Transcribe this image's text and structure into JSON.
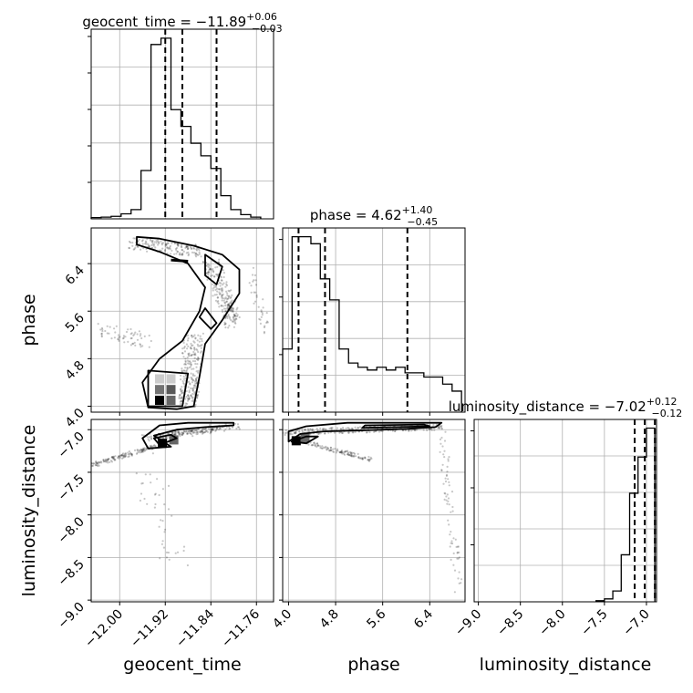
{
  "chart_data": [
    {
      "type": "bar",
      "panel": "geocent_time marginal",
      "title": {
        "main": "geocent_time = −11.89",
        "sup": "+0.06",
        "sub": "−0.03"
      },
      "xlim": [
        -12.05,
        -11.73
      ],
      "x_ticks": [
        "−12.00",
        "−11.92",
        "−11.84",
        "−11.76"
      ],
      "x_tick_values": [
        -12.0,
        -11.92,
        -11.84,
        -11.76
      ],
      "xlabel": "geocent_time",
      "grid": true,
      "bin_edges": [
        -12.05,
        -12.0325,
        -12.015,
        -11.9975,
        -11.98,
        -11.9625,
        -11.945,
        -11.9275,
        -11.91,
        -11.8925,
        -11.875,
        -11.8575,
        -11.84,
        -11.8225,
        -11.805,
        -11.7875,
        -11.77,
        -11.7525
      ],
      "counts": [
        0.3,
        0.4,
        0.6,
        1.2,
        2.2,
        11.5,
        41.5,
        43.0,
        26.0,
        22.0,
        18.0,
        15.0,
        12.0,
        5.5,
        2.2,
        1.0,
        0.4
      ],
      "quantiles": [
        -11.92,
        -11.89,
        -11.83
      ]
    },
    {
      "type": "bar",
      "panel": "phase marginal",
      "title": {
        "main": "phase = 4.62",
        "sup": "+1.40",
        "sub": "−0.45"
      },
      "xlim": [
        3.9,
        7.0
      ],
      "x_ticks": [
        "4.0",
        "4.8",
        "5.6",
        "6.4"
      ],
      "x_tick_values": [
        4.0,
        4.8,
        5.6,
        6.4
      ],
      "xlabel": "phase",
      "grid": true,
      "bin_edges": [
        3.9,
        4.06,
        4.22,
        4.38,
        4.54,
        4.7,
        4.86,
        5.02,
        5.18,
        5.34,
        5.5,
        5.66,
        5.82,
        5.98,
        6.14,
        6.3,
        6.46,
        6.62,
        6.78,
        6.94
      ],
      "counts": [
        4.5,
        12.5,
        12.5,
        12.0,
        9.5,
        8.0,
        4.5,
        3.5,
        3.2,
        3.0,
        3.2,
        3.0,
        3.2,
        2.8,
        2.8,
        2.5,
        2.5,
        2.0,
        1.5
      ],
      "quantiles": [
        4.17,
        4.62,
        6.02
      ]
    },
    {
      "type": "bar",
      "panel": "luminosity_distance marginal",
      "title": {
        "main": "luminosity_distance = −7.02",
        "sup": "+0.12",
        "sub": "−0.12"
      },
      "xlim": [
        -9.05,
        -6.88
      ],
      "x_ticks": [
        "−9.0",
        "−8.5",
        "−8.0",
        "−7.5",
        "−7.0"
      ],
      "x_tick_values": [
        -9.0,
        -8.5,
        -8.0,
        -7.5,
        -7.0
      ],
      "xlabel": "luminosity_distance",
      "grid": true,
      "bin_edges": [
        -7.6,
        -7.5,
        -7.4,
        -7.3,
        -7.2,
        -7.1,
        -7.0,
        -6.9
      ],
      "counts": [
        0.3,
        0.8,
        3.0,
        13.0,
        30.0,
        40.0,
        48.0
      ],
      "quantiles": [
        -7.14,
        -7.02,
        -6.9
      ]
    },
    {
      "type": "scatter",
      "panel": "geocent_time vs phase",
      "xlim": [
        -12.05,
        -11.73
      ],
      "ylim": [
        3.9,
        7.0
      ],
      "y_ticks": [
        "4.0",
        "4.8",
        "5.6",
        "6.4"
      ],
      "y_tick_values": [
        4.0,
        4.8,
        5.6,
        6.4
      ],
      "ylabel": "phase",
      "grid": true,
      "outer_contour": [
        [
          -11.97,
          6.85
        ],
        [
          -11.93,
          6.82
        ],
        [
          -11.87,
          6.7
        ],
        [
          -11.82,
          6.55
        ],
        [
          -11.79,
          6.3
        ],
        [
          -11.79,
          5.9
        ],
        [
          -11.82,
          5.45
        ],
        [
          -11.85,
          5.05
        ],
        [
          -11.86,
          4.5
        ],
        [
          -11.87,
          4.0
        ],
        [
          -11.9,
          3.95
        ],
        [
          -11.95,
          3.98
        ],
        [
          -11.96,
          4.4
        ],
        [
          -11.93,
          4.8
        ],
        [
          -11.89,
          5.1
        ],
        [
          -11.86,
          5.6
        ],
        [
          -11.85,
          6.0
        ],
        [
          -11.88,
          6.4
        ],
        [
          -11.93,
          6.6
        ],
        [
          -11.97,
          6.72
        ]
      ],
      "inner_contour": [
        [
          -11.85,
          6.55
        ],
        [
          -11.82,
          6.35
        ],
        [
          -11.83,
          6.05
        ],
        [
          -11.85,
          6.2
        ]
      ],
      "inner_contour_2": [
        [
          -11.85,
          5.65
        ],
        [
          -11.83,
          5.4
        ],
        [
          -11.84,
          5.3
        ],
        [
          -11.86,
          5.5
        ]
      ],
      "inner_contour_3": [
        [
          -11.95,
          4.6
        ],
        [
          -11.88,
          4.55
        ],
        [
          -11.89,
          4.0
        ],
        [
          -11.95,
          4.0
        ]
      ],
      "dash_mark": [
        [
          -11.91,
          6.46
        ],
        [
          -11.88,
          6.44
        ]
      ],
      "density_cells": [
        {
          "x": -11.93,
          "y": 4.28,
          "level": 0.55
        },
        {
          "x": -11.91,
          "y": 4.28,
          "level": 0.65
        },
        {
          "x": -11.93,
          "y": 4.1,
          "level": 1.0
        },
        {
          "x": -11.91,
          "y": 4.1,
          "level": 0.6
        },
        {
          "x": -11.93,
          "y": 4.46,
          "level": 0.2
        },
        {
          "x": -11.91,
          "y": 4.46,
          "level": 0.2
        }
      ]
    },
    {
      "type": "scatter",
      "panel": "geocent_time vs luminosity_distance",
      "xlim": [
        -12.05,
        -11.73
      ],
      "ylim": [
        -9.02,
        -6.88
      ],
      "y_ticks": [
        "−9.0",
        "−8.5",
        "−8.0",
        "−7.5",
        "−7.0"
      ],
      "y_tick_values": [
        -9.0,
        -8.5,
        -8.0,
        -7.5,
        -7.0
      ],
      "ylabel": "luminosity_distance",
      "grid": true,
      "outer_contour": [
        [
          -11.94,
          -7.07
        ],
        [
          -11.9,
          -7.0
        ],
        [
          -11.85,
          -6.97
        ],
        [
          -11.8,
          -6.95
        ],
        [
          -11.8,
          -6.92
        ],
        [
          -11.88,
          -6.92
        ],
        [
          -11.93,
          -6.95
        ],
        [
          -11.96,
          -7.1
        ],
        [
          -11.95,
          -7.22
        ],
        [
          -11.91,
          -7.2
        ]
      ],
      "inner_contour": [
        [
          -11.94,
          -7.1
        ],
        [
          -11.91,
          -7.06
        ],
        [
          -11.9,
          -7.1
        ],
        [
          -11.93,
          -7.18
        ]
      ],
      "density_cells": [
        {
          "x": -11.925,
          "y": -7.16,
          "level": 1.0
        },
        {
          "x": -11.905,
          "y": -7.12,
          "level": 0.6
        }
      ]
    },
    {
      "type": "scatter",
      "panel": "phase vs luminosity_distance",
      "xlim": [
        3.9,
        7.0
      ],
      "ylim": [
        -9.02,
        -6.88
      ],
      "grid": true,
      "outer_contour": [
        [
          4.0,
          -7.14
        ],
        [
          4.2,
          -7.05
        ],
        [
          4.6,
          -7.02
        ],
        [
          5.2,
          -7.01
        ],
        [
          6.0,
          -6.99
        ],
        [
          6.5,
          -6.97
        ],
        [
          6.6,
          -6.92
        ],
        [
          5.0,
          -6.92
        ],
        [
          4.3,
          -6.96
        ],
        [
          4.0,
          -7.02
        ]
      ],
      "inner_contour": [
        [
          4.05,
          -7.14
        ],
        [
          4.3,
          -7.08
        ],
        [
          4.5,
          -7.08
        ],
        [
          4.3,
          -7.16
        ]
      ],
      "inner_contour_2": [
        [
          5.25,
          -6.98
        ],
        [
          6.4,
          -6.96
        ],
        [
          6.3,
          -6.94
        ],
        [
          5.3,
          -6.95
        ]
      ],
      "density_cells": [
        {
          "x": 4.13,
          "y": -7.13,
          "level": 1.0
        },
        {
          "x": 4.28,
          "y": -7.1,
          "level": 0.6
        }
      ]
    }
  ]
}
